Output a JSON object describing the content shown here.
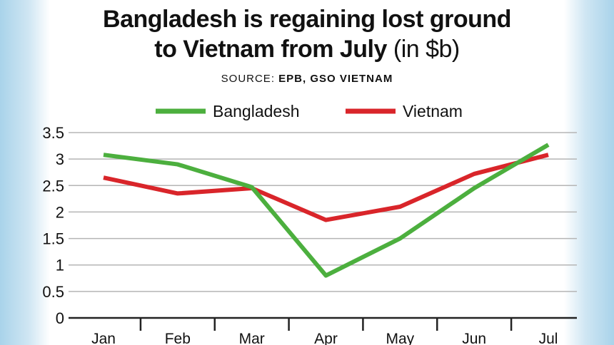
{
  "title_line1": "Bangladesh is regaining lost ground",
  "title_line2_bold": "to Vietnam from July",
  "title_line2_light": "(in $b)",
  "source_label": "SOURCE:",
  "source_value": "EPB, GSO VIETNAM",
  "colors": {
    "bangladesh": "#4caf3e",
    "vietnam": "#d9252a",
    "grid": "#b5b5b5",
    "axis": "#222222"
  },
  "chart_data": {
    "type": "line",
    "title": "Bangladesh is regaining lost ground to Vietnam from July (in $b)",
    "categories": [
      "Jan",
      "Feb",
      "Mar",
      "Apr",
      "May",
      "Jun",
      "Jul"
    ],
    "series": [
      {
        "name": "Bangladesh",
        "color": "#4caf3e",
        "values": [
          3.08,
          2.9,
          2.47,
          0.8,
          1.5,
          2.45,
          3.27
        ]
      },
      {
        "name": "Vietnam",
        "color": "#d9252a",
        "values": [
          2.65,
          2.35,
          2.45,
          1.85,
          2.1,
          2.72,
          3.08
        ]
      }
    ],
    "y_ticks": [
      "0",
      "0.5",
      "1",
      "1.5",
      "2",
      "2.5",
      "3",
      "3.5"
    ],
    "ylim": [
      0,
      3.5
    ],
    "grid": true,
    "legend_position": "top-center"
  }
}
